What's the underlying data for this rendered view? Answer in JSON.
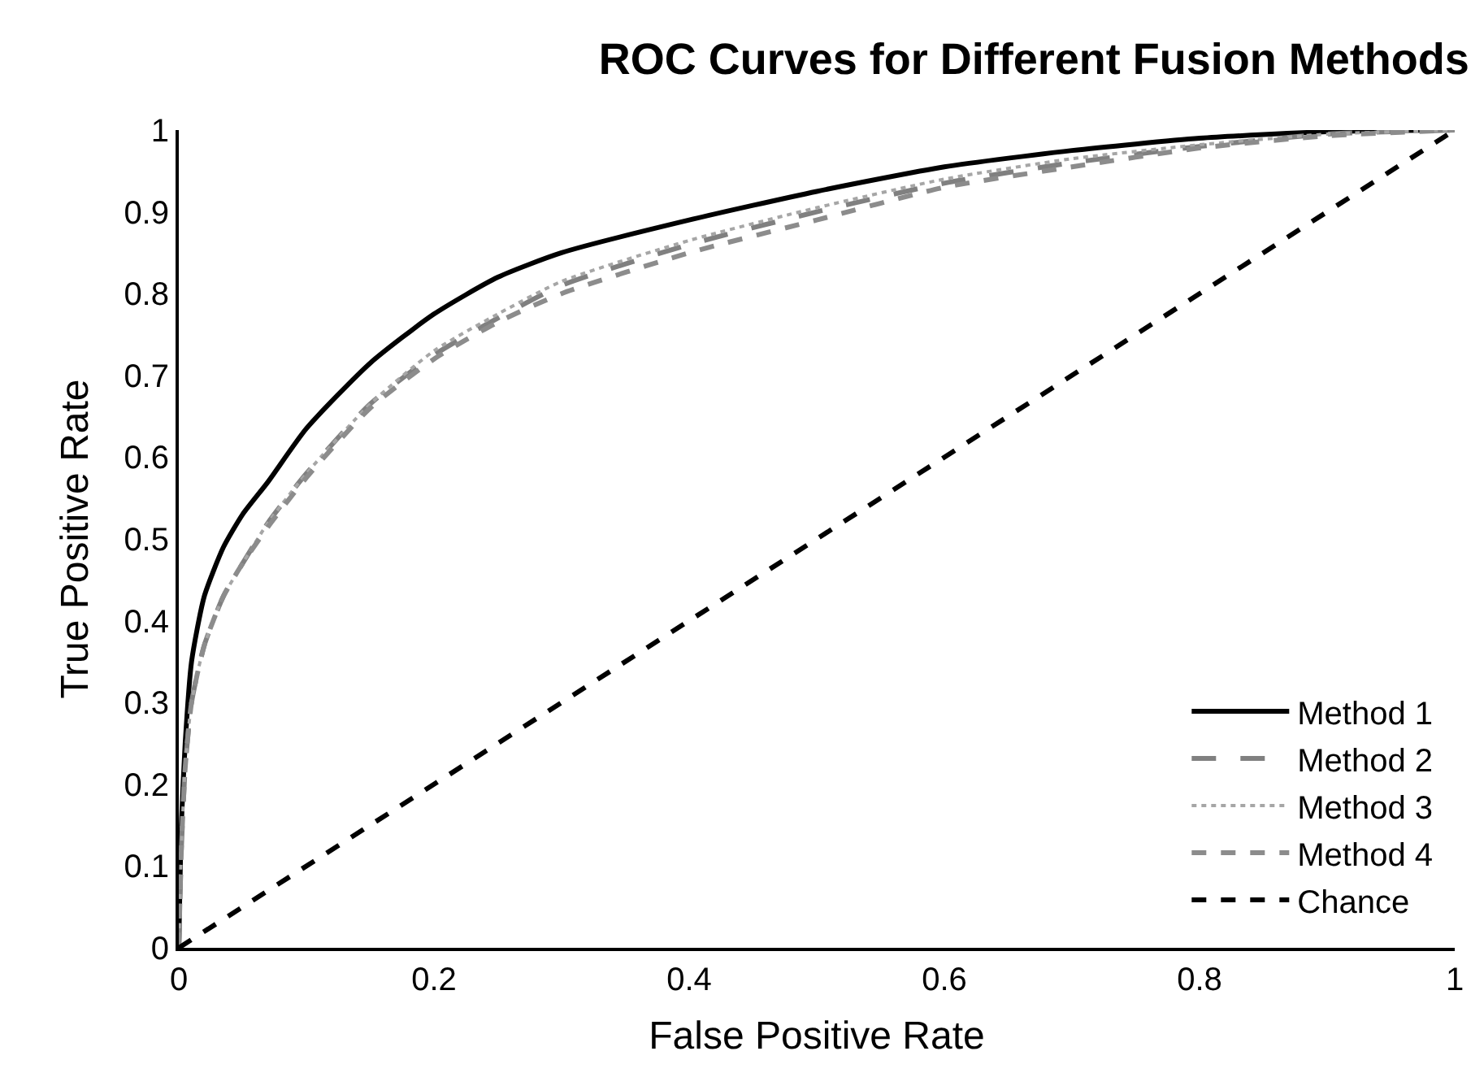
{
  "chart_data": {
    "type": "line",
    "title": "ROC Curves for Different Fusion Methods",
    "xlabel": "False Positive Rate",
    "ylabel": "True Positive Rate",
    "x": [
      0,
      0.002,
      0.005,
      0.01,
      0.02,
      0.035,
      0.05,
      0.07,
      0.1,
      0.15,
      0.2,
      0.25,
      0.3,
      0.4,
      0.5,
      0.6,
      0.7,
      0.8,
      0.9,
      1
    ],
    "series": [
      {
        "name": "Method 1",
        "color": "#000000",
        "line_style": "solid",
        "values": [
          0,
          0.15,
          0.25,
          0.35,
          0.43,
          0.49,
          0.53,
          0.57,
          0.635,
          0.715,
          0.775,
          0.82,
          0.85,
          0.89,
          0.925,
          0.955,
          0.975,
          0.99,
          0.998,
          1
        ]
      },
      {
        "name": "Method 2",
        "color": "#808080",
        "line_style": "longdash",
        "values": [
          0,
          0.12,
          0.22,
          0.3,
          0.37,
          0.43,
          0.47,
          0.52,
          0.58,
          0.665,
          0.725,
          0.77,
          0.81,
          0.86,
          0.9,
          0.935,
          0.96,
          0.98,
          0.995,
          1
        ]
      },
      {
        "name": "Method 3",
        "color": "#a6a6a6",
        "line_style": "dotted",
        "values": [
          0,
          0.12,
          0.22,
          0.3,
          0.37,
          0.43,
          0.47,
          0.52,
          0.58,
          0.665,
          0.73,
          0.775,
          0.815,
          0.865,
          0.905,
          0.94,
          0.965,
          0.982,
          0.995,
          1
        ]
      },
      {
        "name": "Method 4",
        "color": "#8c8c8c",
        "line_style": "dashed",
        "values": [
          0,
          0.12,
          0.22,
          0.3,
          0.37,
          0.43,
          0.47,
          0.515,
          0.575,
          0.66,
          0.72,
          0.765,
          0.8,
          0.85,
          0.89,
          0.93,
          0.955,
          0.978,
          0.993,
          1
        ]
      },
      {
        "name": "Chance",
        "color": "#000000",
        "line_style": "dashed",
        "x": [
          0,
          1
        ],
        "values": [
          0,
          1
        ]
      }
    ],
    "xlim": [
      0,
      1
    ],
    "xticks": [
      0,
      0.2,
      0.4,
      0.6,
      0.8,
      1
    ],
    "ylim": [
      0,
      1
    ],
    "yticks": [
      0,
      0.1,
      0.2,
      0.3,
      0.4,
      0.5,
      0.6,
      0.7,
      0.8,
      0.9,
      1
    ],
    "legend": "bottom right",
    "marker": "none"
  }
}
